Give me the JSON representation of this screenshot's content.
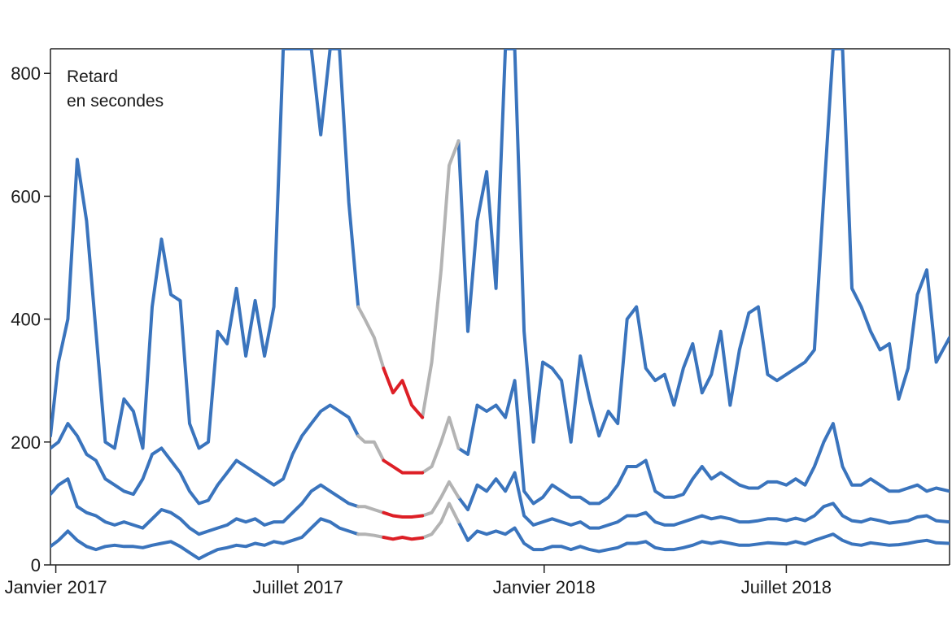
{
  "chart_data": {
    "type": "line",
    "title": "",
    "annotation": [
      "Retard",
      "en secondes"
    ],
    "xlabel": "",
    "ylabel": "",
    "x_unit": "date",
    "xlim": [
      "2016-12-28",
      "2018-10-31"
    ],
    "ylim": [
      0,
      840
    ],
    "y_ticks": [
      0,
      200,
      400,
      600,
      800
    ],
    "x_ticks": [
      {
        "date": "2017-01-01",
        "label": "Janvier 2017"
      },
      {
        "date": "2017-07-01",
        "label": "Juillet 2017"
      },
      {
        "date": "2018-01-01",
        "label": "Janvier 2018"
      },
      {
        "date": "2018-07-01",
        "label": "Juillet 2018"
      }
    ],
    "grid": false,
    "colors": {
      "main": "#3a74bd",
      "gap": "#b3b3b3",
      "highlight": "#dd1f26",
      "axis": "#222222"
    },
    "segments": {
      "gap_start": "2017-08-20",
      "red_start": "2017-09-03",
      "red_end": "2017-10-02",
      "gap_end": "2017-10-22"
    },
    "series": [
      {
        "x": [
          "2016-12-28",
          "2017-01-03",
          "2017-01-10",
          "2017-01-17",
          "2017-01-24",
          "2017-01-31",
          "2017-02-07",
          "2017-02-14",
          "2017-02-21",
          "2017-02-28",
          "2017-03-07",
          "2017-03-14",
          "2017-03-21",
          "2017-03-28",
          "2017-04-04",
          "2017-04-11",
          "2017-04-18",
          "2017-04-25",
          "2017-05-02",
          "2017-05-09",
          "2017-05-16",
          "2017-05-23",
          "2017-05-30",
          "2017-06-06",
          "2017-06-13",
          "2017-06-20",
          "2017-06-27",
          "2017-07-04",
          "2017-07-11",
          "2017-07-18",
          "2017-07-25",
          "2017-08-01",
          "2017-08-08",
          "2017-08-15",
          "2017-08-20",
          "2017-08-27",
          "2017-09-03",
          "2017-09-10",
          "2017-09-17",
          "2017-09-24",
          "2017-10-02",
          "2017-10-09",
          "2017-10-16",
          "2017-10-22",
          "2017-10-29",
          "2017-11-05",
          "2017-11-12",
          "2017-11-19",
          "2017-11-26",
          "2017-12-03",
          "2017-12-10",
          "2017-12-17",
          "2017-12-24",
          "2017-12-31",
          "2018-01-07",
          "2018-01-14",
          "2018-01-21",
          "2018-01-28",
          "2018-02-04",
          "2018-02-11",
          "2018-02-18",
          "2018-02-25",
          "2018-03-04",
          "2018-03-11",
          "2018-03-18",
          "2018-03-25",
          "2018-04-01",
          "2018-04-08",
          "2018-04-15",
          "2018-04-22",
          "2018-04-29",
          "2018-05-06",
          "2018-05-13",
          "2018-05-20",
          "2018-05-27",
          "2018-06-03",
          "2018-06-10",
          "2018-06-17",
          "2018-06-24",
          "2018-07-01",
          "2018-07-08",
          "2018-07-15",
          "2018-07-22",
          "2018-07-29",
          "2018-08-05",
          "2018-08-12",
          "2018-08-19",
          "2018-08-26",
          "2018-09-02",
          "2018-09-09",
          "2018-09-16",
          "2018-09-23",
          "2018-09-30",
          "2018-10-07",
          "2018-10-14",
          "2018-10-21",
          "2018-10-31"
        ],
        "values": [
          210,
          330,
          400,
          660,
          560,
          380,
          200,
          190,
          270,
          250,
          190,
          420,
          530,
          440,
          430,
          230,
          190,
          200,
          380,
          360,
          450,
          340,
          430,
          340,
          420,
          840,
          840,
          840,
          840,
          700,
          840,
          840,
          590,
          420,
          400,
          370,
          320,
          280,
          300,
          260,
          240,
          330,
          480,
          650,
          690,
          380,
          560,
          640,
          450,
          840,
          840,
          380,
          200,
          330,
          320,
          300,
          200,
          340,
          270,
          210,
          250,
          230,
          400,
          420,
          320,
          300,
          310,
          260,
          320,
          360,
          280,
          310,
          380,
          260,
          350,
          410,
          420,
          310,
          300,
          310,
          320,
          330,
          350,
          600,
          840,
          840,
          450,
          420,
          380,
          350,
          360,
          270,
          320,
          440,
          480,
          330,
          370
        ]
      },
      {
        "x": [
          "2016-12-28",
          "2017-01-03",
          "2017-01-10",
          "2017-01-17",
          "2017-01-24",
          "2017-01-31",
          "2017-02-07",
          "2017-02-14",
          "2017-02-21",
          "2017-02-28",
          "2017-03-07",
          "2017-03-14",
          "2017-03-21",
          "2017-03-28",
          "2017-04-04",
          "2017-04-11",
          "2017-04-18",
          "2017-04-25",
          "2017-05-02",
          "2017-05-09",
          "2017-05-16",
          "2017-05-23",
          "2017-05-30",
          "2017-06-06",
          "2017-06-13",
          "2017-06-20",
          "2017-06-27",
          "2017-07-04",
          "2017-07-11",
          "2017-07-18",
          "2017-07-25",
          "2017-08-01",
          "2017-08-08",
          "2017-08-15",
          "2017-08-20",
          "2017-08-27",
          "2017-09-03",
          "2017-09-10",
          "2017-09-17",
          "2017-09-24",
          "2017-10-02",
          "2017-10-09",
          "2017-10-16",
          "2017-10-22",
          "2017-10-29",
          "2017-11-05",
          "2017-11-12",
          "2017-11-19",
          "2017-11-26",
          "2017-12-03",
          "2017-12-10",
          "2017-12-17",
          "2017-12-24",
          "2017-12-31",
          "2018-01-07",
          "2018-01-14",
          "2018-01-21",
          "2018-01-28",
          "2018-02-04",
          "2018-02-11",
          "2018-02-18",
          "2018-02-25",
          "2018-03-04",
          "2018-03-11",
          "2018-03-18",
          "2018-03-25",
          "2018-04-01",
          "2018-04-08",
          "2018-04-15",
          "2018-04-22",
          "2018-04-29",
          "2018-05-06",
          "2018-05-13",
          "2018-05-20",
          "2018-05-27",
          "2018-06-03",
          "2018-06-10",
          "2018-06-17",
          "2018-06-24",
          "2018-07-01",
          "2018-07-08",
          "2018-07-15",
          "2018-07-22",
          "2018-07-29",
          "2018-08-05",
          "2018-08-12",
          "2018-08-19",
          "2018-08-26",
          "2018-09-02",
          "2018-09-09",
          "2018-09-16",
          "2018-09-23",
          "2018-09-30",
          "2018-10-07",
          "2018-10-14",
          "2018-10-21",
          "2018-10-31"
        ],
        "values": [
          190,
          200,
          230,
          210,
          180,
          170,
          140,
          130,
          120,
          115,
          140,
          180,
          190,
          170,
          150,
          120,
          100,
          105,
          130,
          150,
          170,
          160,
          150,
          140,
          130,
          140,
          180,
          210,
          230,
          250,
          260,
          250,
          240,
          210,
          200,
          200,
          170,
          160,
          150,
          150,
          150,
          160,
          200,
          240,
          190,
          180,
          260,
          250,
          260,
          240,
          300,
          120,
          100,
          110,
          130,
          120,
          110,
          110,
          100,
          100,
          110,
          130,
          160,
          160,
          170,
          120,
          110,
          110,
          115,
          140,
          160,
          140,
          150,
          140,
          130,
          125,
          125,
          135,
          135,
          130,
          140,
          130,
          160,
          200,
          230,
          160,
          130,
          130,
          140,
          130,
          120,
          120,
          125,
          130,
          120,
          125,
          120
        ]
      },
      {
        "x": [
          "2016-12-28",
          "2017-01-03",
          "2017-01-10",
          "2017-01-17",
          "2017-01-24",
          "2017-01-31",
          "2017-02-07",
          "2017-02-14",
          "2017-02-21",
          "2017-02-28",
          "2017-03-07",
          "2017-03-14",
          "2017-03-21",
          "2017-03-28",
          "2017-04-04",
          "2017-04-11",
          "2017-04-18",
          "2017-04-25",
          "2017-05-02",
          "2017-05-09",
          "2017-05-16",
          "2017-05-23",
          "2017-05-30",
          "2017-06-06",
          "2017-06-13",
          "2017-06-20",
          "2017-06-27",
          "2017-07-04",
          "2017-07-11",
          "2017-07-18",
          "2017-07-25",
          "2017-08-01",
          "2017-08-08",
          "2017-08-15",
          "2017-08-20",
          "2017-08-27",
          "2017-09-03",
          "2017-09-10",
          "2017-09-17",
          "2017-09-24",
          "2017-10-02",
          "2017-10-09",
          "2017-10-16",
          "2017-10-22",
          "2017-10-29",
          "2017-11-05",
          "2017-11-12",
          "2017-11-19",
          "2017-11-26",
          "2017-12-03",
          "2017-12-10",
          "2017-12-17",
          "2017-12-24",
          "2017-12-31",
          "2018-01-07",
          "2018-01-14",
          "2018-01-21",
          "2018-01-28",
          "2018-02-04",
          "2018-02-11",
          "2018-02-18",
          "2018-02-25",
          "2018-03-04",
          "2018-03-11",
          "2018-03-18",
          "2018-03-25",
          "2018-04-01",
          "2018-04-08",
          "2018-04-15",
          "2018-04-22",
          "2018-04-29",
          "2018-05-06",
          "2018-05-13",
          "2018-05-20",
          "2018-05-27",
          "2018-06-03",
          "2018-06-10",
          "2018-06-17",
          "2018-06-24",
          "2018-07-01",
          "2018-07-08",
          "2018-07-15",
          "2018-07-22",
          "2018-07-29",
          "2018-08-05",
          "2018-08-12",
          "2018-08-19",
          "2018-08-26",
          "2018-09-02",
          "2018-09-09",
          "2018-09-16",
          "2018-09-23",
          "2018-09-30",
          "2018-10-07",
          "2018-10-14",
          "2018-10-21",
          "2018-10-31"
        ],
        "values": [
          115,
          130,
          140,
          95,
          85,
          80,
          70,
          65,
          70,
          65,
          60,
          75,
          90,
          85,
          75,
          60,
          50,
          55,
          60,
          65,
          75,
          70,
          75,
          65,
          70,
          70,
          85,
          100,
          120,
          130,
          120,
          110,
          100,
          95,
          95,
          90,
          85,
          80,
          78,
          78,
          80,
          85,
          110,
          135,
          110,
          90,
          130,
          120,
          140,
          120,
          150,
          80,
          65,
          70,
          75,
          70,
          65,
          70,
          60,
          60,
          65,
          70,
          80,
          80,
          85,
          70,
          65,
          65,
          70,
          75,
          80,
          75,
          78,
          75,
          70,
          70,
          72,
          75,
          75,
          72,
          76,
          72,
          80,
          95,
          100,
          80,
          72,
          70,
          75,
          72,
          68,
          70,
          72,
          78,
          80,
          72,
          70
        ]
      },
      {
        "x": [
          "2016-12-28",
          "2017-01-03",
          "2017-01-10",
          "2017-01-17",
          "2017-01-24",
          "2017-01-31",
          "2017-02-07",
          "2017-02-14",
          "2017-02-21",
          "2017-02-28",
          "2017-03-07",
          "2017-03-14",
          "2017-03-21",
          "2017-03-28",
          "2017-04-04",
          "2017-04-11",
          "2017-04-18",
          "2017-04-25",
          "2017-05-02",
          "2017-05-09",
          "2017-05-16",
          "2017-05-23",
          "2017-05-30",
          "2017-06-06",
          "2017-06-13",
          "2017-06-20",
          "2017-06-27",
          "2017-07-04",
          "2017-07-11",
          "2017-07-18",
          "2017-07-25",
          "2017-08-01",
          "2017-08-08",
          "2017-08-15",
          "2017-08-20",
          "2017-08-27",
          "2017-09-03",
          "2017-09-10",
          "2017-09-17",
          "2017-09-24",
          "2017-10-02",
          "2017-10-09",
          "2017-10-16",
          "2017-10-22",
          "2017-10-29",
          "2017-11-05",
          "2017-11-12",
          "2017-11-19",
          "2017-11-26",
          "2017-12-03",
          "2017-12-10",
          "2017-12-17",
          "2017-12-24",
          "2017-12-31",
          "2018-01-07",
          "2018-01-14",
          "2018-01-21",
          "2018-01-28",
          "2018-02-04",
          "2018-02-11",
          "2018-02-18",
          "2018-02-25",
          "2018-03-04",
          "2018-03-11",
          "2018-03-18",
          "2018-03-25",
          "2018-04-01",
          "2018-04-08",
          "2018-04-15",
          "2018-04-22",
          "2018-04-29",
          "2018-05-06",
          "2018-05-13",
          "2018-05-20",
          "2018-05-27",
          "2018-06-03",
          "2018-06-10",
          "2018-06-17",
          "2018-06-24",
          "2018-07-01",
          "2018-07-08",
          "2018-07-15",
          "2018-07-22",
          "2018-07-29",
          "2018-08-05",
          "2018-08-12",
          "2018-08-19",
          "2018-08-26",
          "2018-09-02",
          "2018-09-09",
          "2018-09-16",
          "2018-09-23",
          "2018-09-30",
          "2018-10-07",
          "2018-10-14",
          "2018-10-21",
          "2018-10-31"
        ],
        "values": [
          30,
          40,
          55,
          40,
          30,
          25,
          30,
          32,
          30,
          30,
          28,
          32,
          35,
          38,
          30,
          20,
          10,
          18,
          25,
          28,
          32,
          30,
          35,
          32,
          38,
          35,
          40,
          45,
          60,
          75,
          70,
          60,
          55,
          50,
          50,
          48,
          45,
          42,
          45,
          42,
          44,
          50,
          70,
          100,
          70,
          40,
          55,
          50,
          55,
          50,
          60,
          35,
          25,
          25,
          30,
          30,
          25,
          30,
          25,
          22,
          25,
          28,
          35,
          35,
          38,
          28,
          25,
          25,
          28,
          32,
          38,
          35,
          38,
          35,
          32,
          32,
          34,
          36,
          35,
          34,
          38,
          34,
          40,
          45,
          50,
          40,
          34,
          32,
          36,
          34,
          32,
          33,
          35,
          38,
          40,
          36,
          35
        ]
      }
    ]
  }
}
